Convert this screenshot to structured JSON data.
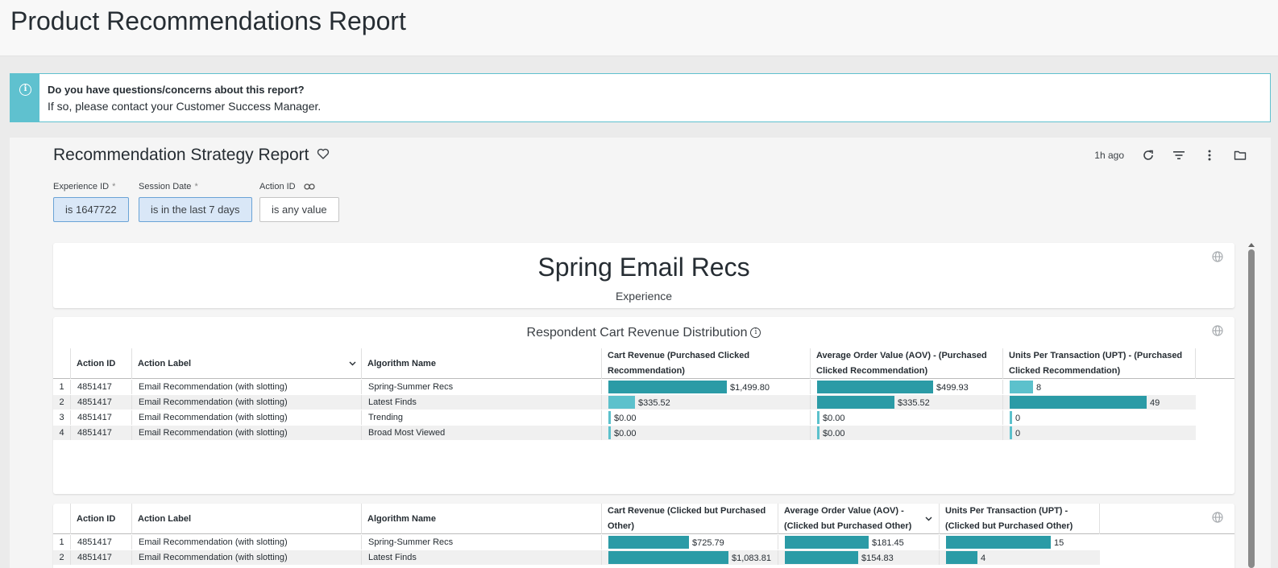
{
  "page": {
    "title": "Product Recommendations Report"
  },
  "banner": {
    "question": "Do you have questions/concerns about this report?",
    "answer": "If so, please contact your Customer Success Manager."
  },
  "dashboard": {
    "title": "Recommendation Strategy Report",
    "updated": "1h ago",
    "icons": [
      "heart-icon",
      "refresh-icon",
      "filter-icon",
      "more-vertical-icon",
      "folder-icon",
      "globe-icon",
      "info-icon",
      "link-icon",
      "chevron-down-icon"
    ],
    "filters": [
      {
        "label": "Experience ID",
        "required": "*",
        "value": "is 1647722",
        "active": true
      },
      {
        "label": "Session Date",
        "required": "*",
        "value": "is in the last 7 days",
        "active": true
      },
      {
        "label": "Action ID",
        "required": "",
        "value": "is any value",
        "active": false
      }
    ]
  },
  "experience_tile": {
    "title": "Spring Email Recs",
    "subtitle": "Experience"
  },
  "table1": {
    "title": "Respondent Cart Revenue Distribution",
    "headers": {
      "action_id": "Action ID",
      "action_label": "Action Label",
      "algorithm": "Algorithm Name",
      "m1": "Cart Revenue (Purchased Clicked Recommendation)",
      "m2": "Average Order Value (AOV) - (Purchased Clicked Recommendation)",
      "m3": "Units Per Transaction (UPT) - (Purchased Clicked Recommendation)"
    },
    "rows": [
      {
        "n": "1",
        "action_id": "4851417",
        "action_label": "Email Recommendation (with slotting)",
        "algorithm": "Spring-Summer Recs",
        "m1": "$1,499.80",
        "m2": "$499.93",
        "m3": "8"
      },
      {
        "n": "2",
        "action_id": "4851417",
        "action_label": "Email Recommendation (with slotting)",
        "algorithm": "Latest Finds",
        "m1": "$335.52",
        "m2": "$335.52",
        "m3": "49"
      },
      {
        "n": "3",
        "action_id": "4851417",
        "action_label": "Email Recommendation (with slotting)",
        "algorithm": "Trending",
        "m1": "$0.00",
        "m2": "$0.00",
        "m3": "0"
      },
      {
        "n": "4",
        "action_id": "4851417",
        "action_label": "Email Recommendation (with slotting)",
        "algorithm": "Broad Most Viewed",
        "m1": "$0.00",
        "m2": "$0.00",
        "m3": "0"
      }
    ],
    "fill": {
      "m1": [
        0.78,
        0.174,
        0.0,
        0.0
      ],
      "m2": [
        0.85,
        0.57,
        0.0,
        0.0
      ],
      "m3": [
        0.17,
        1.0,
        0.0,
        0.0
      ]
    }
  },
  "table2": {
    "headers": {
      "action_id": "Action ID",
      "action_label": "Action Label",
      "algorithm": "Algorithm Name",
      "m1": "Cart Revenue (Clicked but Purchased Other)",
      "m2": "Average Order Value (AOV) - (Clicked but Purchased Other)",
      "m3": "Units Per Transaction (UPT) - (Clicked but Purchased Other)"
    },
    "rows": [
      {
        "n": "1",
        "action_id": "4851417",
        "action_label": "Email Recommendation (with slotting)",
        "algorithm": "Spring-Summer Recs",
        "m1": "$725.79",
        "m2": "$181.45",
        "m3": "15"
      },
      {
        "n": "2",
        "action_id": "4851417",
        "action_label": "Email Recommendation (with slotting)",
        "algorithm": "Latest Finds",
        "m1": "$1,083.81",
        "m2": "$154.83",
        "m3": "4"
      }
    ],
    "fill": {
      "m1": [
        0.67,
        1.0
      ],
      "m2": [
        0.8,
        0.7
      ],
      "m3": [
        1.0,
        0.3
      ]
    }
  },
  "colors": {
    "bar_dark": "#2b9ba6",
    "bar_light": "#5cc1cc",
    "accent": "#5fc1cf"
  }
}
